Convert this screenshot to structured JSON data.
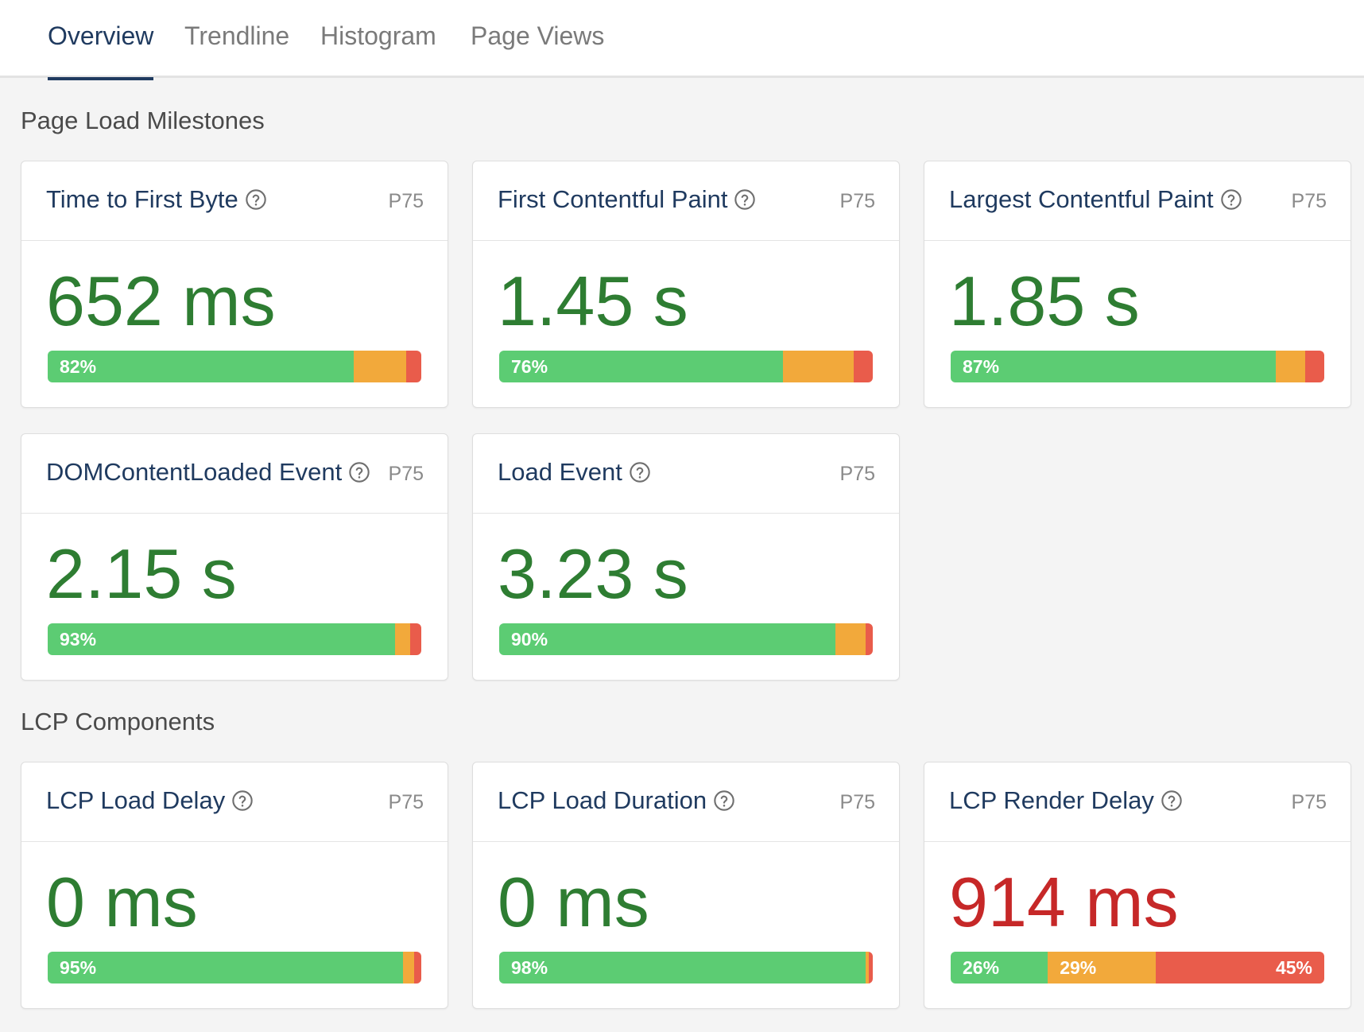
{
  "tabs": [
    {
      "label": "Overview",
      "active": true
    },
    {
      "label": "Trendline",
      "active": false
    },
    {
      "label": "Histogram",
      "active": false
    },
    {
      "label": "Page Views",
      "active": false
    }
  ],
  "colors": {
    "good": "#5ccc73",
    "needs_improvement": "#f2a93b",
    "poor": "#e95c4b",
    "value_good": "#2e7d32",
    "value_poor": "#c62828",
    "accent": "#1f3a5f"
  },
  "sections": {
    "milestones_title": "Page Load Milestones",
    "lcp_title": "LCP Components"
  },
  "cards": [
    {
      "title": "Time to First Byte",
      "icon": "help-circle-icon",
      "tag": "P75",
      "value": "652 ms",
      "rating": "good",
      "distribution": {
        "good": 82,
        "needs_improvement": 14,
        "poor": 4
      },
      "labels": {
        "good": "82%"
      }
    },
    {
      "title": "First Contentful Paint",
      "icon": "help-circle-icon",
      "tag": "P75",
      "value": "1.45 s",
      "rating": "good",
      "distribution": {
        "good": 76,
        "needs_improvement": 19,
        "poor": 5
      },
      "labels": {
        "good": "76%"
      }
    },
    {
      "title": "Largest Contentful Paint",
      "icon": "help-circle-icon",
      "tag": "P75",
      "value": "1.85 s",
      "rating": "good",
      "distribution": {
        "good": 87,
        "needs_improvement": 8,
        "poor": 5
      },
      "labels": {
        "good": "87%"
      }
    },
    {
      "title": "DOMContentLoaded Event",
      "icon": "help-circle-icon",
      "tag": "P75",
      "value": "2.15 s",
      "rating": "good",
      "distribution": {
        "good": 93,
        "needs_improvement": 4,
        "poor": 3
      },
      "labels": {
        "good": "93%"
      }
    },
    {
      "title": "Load Event",
      "icon": "help-circle-icon",
      "tag": "P75",
      "value": "3.23 s",
      "rating": "good",
      "distribution": {
        "good": 90,
        "needs_improvement": 8,
        "poor": 2
      },
      "labels": {
        "good": "90%"
      }
    },
    {
      "title": "LCP Load Delay",
      "icon": "help-circle-icon",
      "tag": "P75",
      "value": "0 ms",
      "rating": "good",
      "distribution": {
        "good": 95,
        "needs_improvement": 3,
        "poor": 2
      },
      "labels": {
        "good": "95%"
      }
    },
    {
      "title": "LCP Load Duration",
      "icon": "help-circle-icon",
      "tag": "P75",
      "value": "0 ms",
      "rating": "good",
      "distribution": {
        "good": 98,
        "needs_improvement": 1,
        "poor": 1
      },
      "labels": {
        "good": "98%"
      }
    },
    {
      "title": "LCP Render Delay",
      "icon": "help-circle-icon",
      "tag": "P75",
      "value": "914 ms",
      "rating": "poor",
      "distribution": {
        "good": 26,
        "needs_improvement": 29,
        "poor": 45
      },
      "labels": {
        "good": "26%",
        "needs_improvement": "29%",
        "poor": "45%"
      }
    }
  ]
}
